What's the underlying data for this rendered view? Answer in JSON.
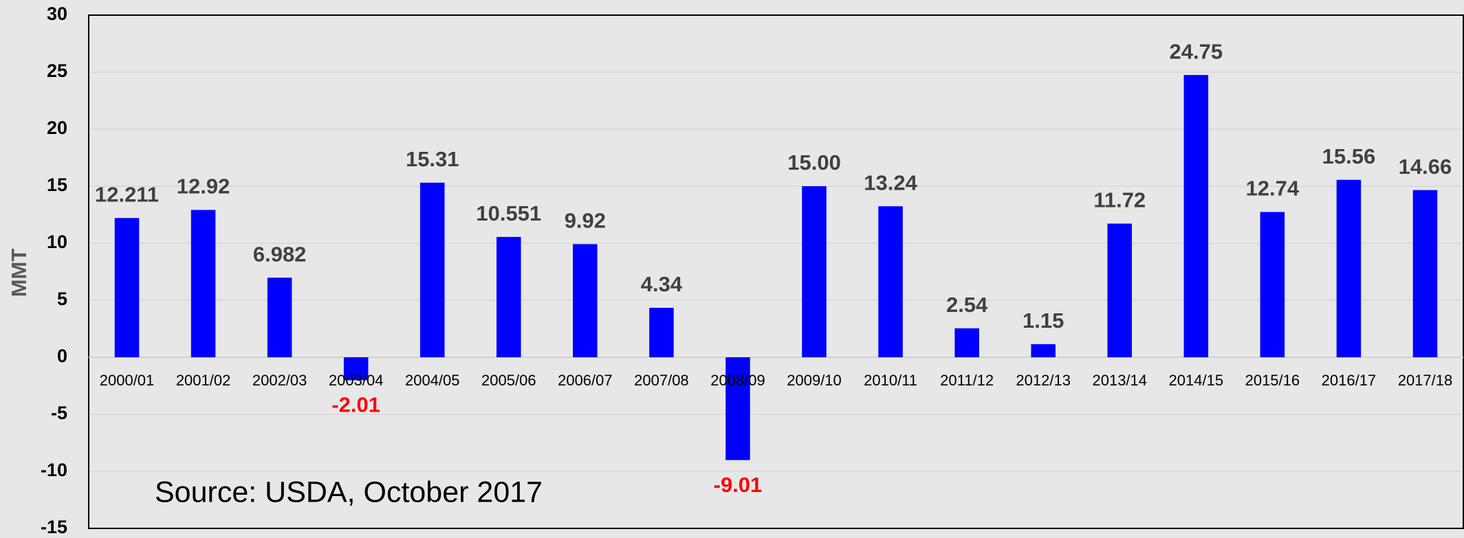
{
  "chart_data": {
    "type": "bar",
    "y_axis_label": "MMT",
    "annotation": "Source: USDA, October 2017",
    "categories": [
      "2000/01",
      "2001/02",
      "2002/03",
      "2003/04",
      "2004/05",
      "2005/06",
      "2006/07",
      "2007/08",
      "2008/09",
      "2009/10",
      "2010/11",
      "2011/12",
      "2012/13",
      "2013/14",
      "2014/15",
      "2015/16",
      "2016/17",
      "2017/18"
    ],
    "values": [
      12.211,
      12.92,
      6.982,
      -2.01,
      15.31,
      10.551,
      9.92,
      4.34,
      -9.01,
      15.0,
      13.24,
      2.54,
      1.15,
      11.72,
      24.75,
      12.74,
      15.56,
      14.66
    ],
    "value_labels": [
      "12.211",
      "12.92",
      "6.982",
      "-2.01",
      "15.31",
      "10.551",
      "9.92",
      "4.34",
      "-9.01",
      "15.00",
      "13.24",
      "2.54",
      "1.15",
      "11.72",
      "24.75",
      "12.74",
      "15.56",
      "14.66"
    ],
    "color": "#0000ff",
    "label_color": "#404040",
    "negative_label_color": "#ff0000",
    "ylim": [
      -15,
      30
    ],
    "yticks": [
      -15,
      -10,
      -5,
      0,
      5,
      10,
      15,
      20,
      25,
      30
    ],
    "grid": true
  }
}
